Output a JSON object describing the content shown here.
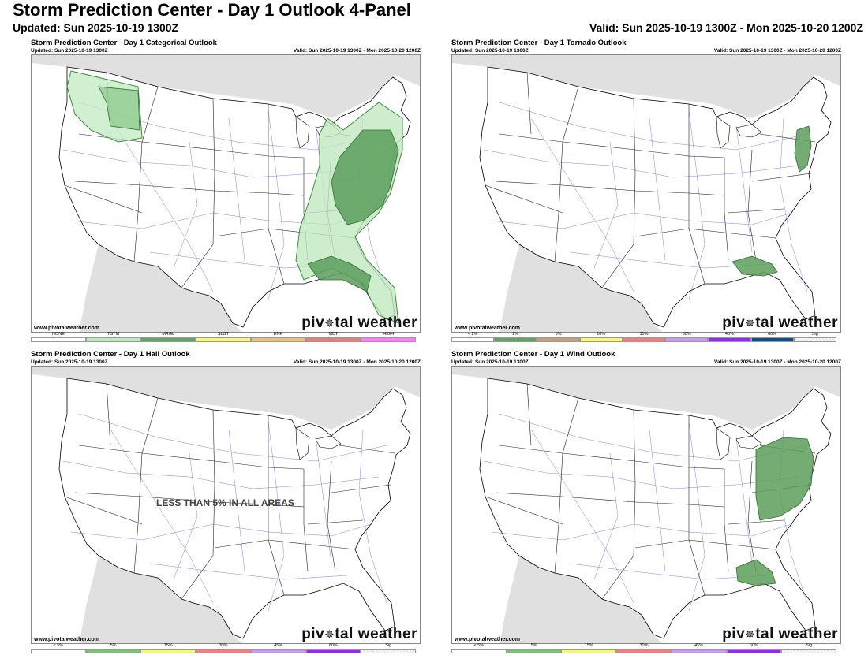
{
  "header": {
    "title": "Storm Prediction Center - Day 1 Outlook 4-Panel",
    "updated": "Updated: Sun 2025-10-19 1300Z",
    "valid": "Valid: Sun 2025-10-19 1300Z - Mon 2025-10-20 1200Z"
  },
  "panels": [
    {
      "title": "Storm Prediction Center - Day 1 Categorical Outlook",
      "updated": "Updated: Sun 2025-10-19 1300Z",
      "valid": "Valid: Sun 2025-10-19 1300Z - Mon 2025-10-20 1200Z",
      "credit": "www.pivotalweather.com",
      "brand": "piv tal weather",
      "legend": [
        {
          "label": "NONE",
          "color": "#ffffff"
        },
        {
          "label": "TSTM",
          "color": "#c1e9c1"
        },
        {
          "label": "MRGL",
          "color": "#66a366"
        },
        {
          "label": "SLGT",
          "color": "#f6f67b"
        },
        {
          "label": "ENH",
          "color": "#e6c27c"
        },
        {
          "label": "MDT",
          "color": "#e67c7c"
        },
        {
          "label": "HIGH",
          "color": "#ff7cff"
        }
      ]
    },
    {
      "title": "Storm Prediction Center - Day 1 Tornado Outlook",
      "updated": "Updated: Sun 2025-10-19 1300Z",
      "valid": "Valid: Sun 2025-10-19 1300Z - Mon 2025-10-20 1200Z",
      "credit": "www.pivotalweather.com",
      "brand": "piv tal weather",
      "legend": [
        {
          "label": "< 2%",
          "color": "#ffffff"
        },
        {
          "label": "2%",
          "color": "#66a366"
        },
        {
          "label": "5%",
          "color": "#c4a07a"
        },
        {
          "label": "10%",
          "color": "#f6f67b"
        },
        {
          "label": "15%",
          "color": "#f08080"
        },
        {
          "label": "30%",
          "color": "#c69bf0"
        },
        {
          "label": "45%",
          "color": "#912cee"
        },
        {
          "label": "60%",
          "color": "#104e8b"
        },
        {
          "label": "Sig",
          "color": "hatch"
        }
      ]
    },
    {
      "title": "Storm Prediction Center - Day 1 Hail Outlook",
      "updated": "Updated: Sun 2025-10-19 1300Z",
      "valid": "Valid: Sun 2025-10-19 1300Z - Mon 2025-10-20 1200Z",
      "credit": "www.pivotalweather.com",
      "brand": "piv tal weather",
      "no_risk_label": "LESS THAN 5% IN ALL AREAS",
      "legend": [
        {
          "label": "< 5%",
          "color": "#ffffff"
        },
        {
          "label": "5%",
          "color": "#7cc07c"
        },
        {
          "label": "15%",
          "color": "#f6f67b"
        },
        {
          "label": "30%",
          "color": "#f08080"
        },
        {
          "label": "45%",
          "color": "#c69bf0"
        },
        {
          "label": "60%",
          "color": "#912cee"
        },
        {
          "label": "Sig",
          "color": "hatch"
        }
      ]
    },
    {
      "title": "Storm Prediction Center - Day 1 Wind Outlook",
      "updated": "Updated: Sun 2025-10-19 1300Z",
      "valid": "Valid: Sun 2025-10-19 1300Z - Mon 2025-10-20 1200Z",
      "credit": "www.pivotalweather.com",
      "brand": "piv tal weather",
      "legend": [
        {
          "label": "< 5%",
          "color": "#ffffff"
        },
        {
          "label": "5%",
          "color": "#7cc07c"
        },
        {
          "label": "15%",
          "color": "#f6f67b"
        },
        {
          "label": "30%",
          "color": "#f08080"
        },
        {
          "label": "45%",
          "color": "#c69bf0"
        },
        {
          "label": "60%",
          "color": "#912cee"
        },
        {
          "label": "Sig",
          "color": "hatch"
        }
      ]
    }
  ],
  "colors": {
    "land_outside": "#e0e0e0",
    "land_us": "#ffffff",
    "roads": "#4d4dff",
    "tstm": "#c1e9c1",
    "mrgl": "#66a366",
    "border": "#000000"
  }
}
